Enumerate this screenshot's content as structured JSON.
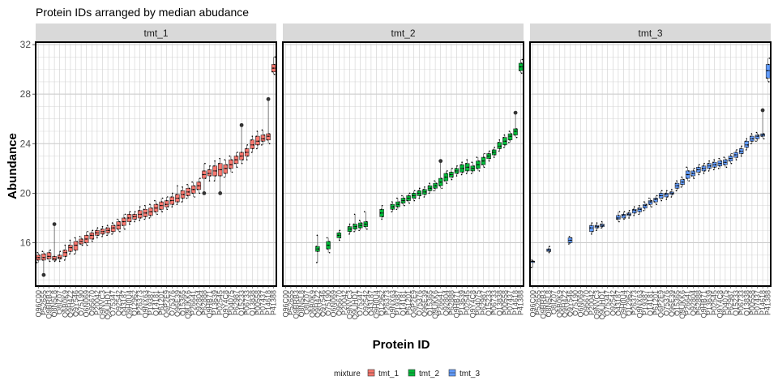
{
  "chart_data": {
    "type": "boxplot",
    "title": "Protein IDs arranged by median abudance",
    "xlabel": "Protein ID",
    "ylabel": "Abundance",
    "ylim": [
      12.5,
      32.2
    ],
    "yticks": [
      16,
      20,
      24,
      28,
      32
    ],
    "grid": true,
    "legend": {
      "title": "mixture",
      "position": "bottom",
      "entries": [
        "tmt_1",
        "tmt_2",
        "tmt_3"
      ]
    },
    "colors": {
      "tmt_1": "#F8766D",
      "tmt_2": "#00BA38",
      "tmt_3": "#619CFF"
    },
    "categories": [
      "Q96C00",
      "P52655",
      "Q9BRB3",
      "Q8N5L8",
      "Q8IZ07",
      "Q6B0K9",
      "Q9H4Z2",
      "Q9Y546",
      "O75190",
      "Q6N069",
      "O95670",
      "P20042",
      "Q9NVC3",
      "Q9UHD1",
      "O75347",
      "Q92542",
      "O43187",
      "Q9H0U4",
      "Q12962",
      "P26373",
      "Q9NX63",
      "P19387",
      "Q14181",
      "P61201",
      "Q6P2E9",
      "O75376",
      "Q96E39",
      "Q15365",
      "Q9UKK6",
      "P26641",
      "Q92804",
      "P62888",
      "Q9HB71",
      "P13639",
      "P02545",
      "Q9Y4C8",
      "P04075",
      "P62987",
      "Q15233",
      "P06733",
      "Q13838",
      "P00558",
      "P07437",
      "P14618",
      "P41388"
    ],
    "series": [
      {
        "name": "tmt_1",
        "medians": [
          14.8,
          14.8,
          14.9,
          14.7,
          14.8,
          15.2,
          15.6,
          15.8,
          16.1,
          16.3,
          16.6,
          16.8,
          16.9,
          17.0,
          17.2,
          17.4,
          17.7,
          18.0,
          18.1,
          18.3,
          18.4,
          18.5,
          18.8,
          19.0,
          19.1,
          19.4,
          19.6,
          19.9,
          20.1,
          20.3,
          20.6,
          21.5,
          21.6,
          21.8,
          21.9,
          22.0,
          22.3,
          22.7,
          23.0,
          23.3,
          23.9,
          24.2,
          24.4,
          24.6,
          30.1
        ],
        "q1": [
          14.6,
          14.6,
          14.7,
          14.6,
          14.7,
          14.9,
          15.3,
          15.4,
          15.9,
          16.0,
          16.3,
          16.6,
          16.7,
          16.8,
          16.9,
          17.1,
          17.4,
          17.7,
          17.9,
          18.0,
          18.1,
          18.2,
          18.5,
          18.7,
          18.9,
          19.1,
          19.3,
          19.6,
          19.8,
          20.0,
          20.3,
          21.2,
          21.4,
          21.4,
          21.4,
          21.6,
          22.0,
          22.4,
          22.7,
          23.0,
          23.6,
          23.9,
          24.2,
          24.3,
          29.8
        ],
        "q3": [
          15.0,
          15.1,
          15.2,
          14.9,
          15.0,
          15.4,
          15.8,
          16.1,
          16.3,
          16.6,
          16.8,
          17.0,
          17.1,
          17.2,
          17.4,
          17.7,
          18.0,
          18.3,
          18.3,
          18.6,
          18.7,
          18.8,
          19.1,
          19.3,
          19.4,
          19.7,
          19.9,
          20.2,
          20.4,
          20.6,
          20.9,
          21.8,
          21.9,
          22.2,
          22.4,
          22.3,
          22.7,
          23.0,
          23.3,
          23.6,
          24.3,
          24.6,
          24.7,
          24.8,
          30.4
        ],
        "min": [
          14.4,
          13.4,
          14.5,
          14.5,
          14.5,
          14.6,
          15.1,
          15.1,
          15.8,
          15.8,
          16.1,
          16.4,
          16.5,
          16.6,
          16.7,
          16.9,
          17.1,
          17.5,
          17.7,
          17.8,
          17.9,
          18.0,
          18.3,
          18.5,
          18.7,
          18.9,
          19.1,
          19.3,
          19.6,
          19.7,
          20.0,
          20.0,
          21.0,
          21.0,
          20.0,
          21.3,
          21.7,
          22.1,
          22.4,
          22.7,
          23.3,
          23.6,
          23.9,
          24.0,
          29.6
        ],
        "max": [
          15.2,
          15.3,
          15.4,
          17.5,
          15.3,
          15.8,
          16.2,
          16.4,
          16.5,
          16.9,
          17.0,
          17.2,
          17.3,
          17.4,
          17.6,
          17.9,
          18.3,
          18.5,
          18.5,
          18.9,
          19.0,
          19.1,
          19.4,
          19.6,
          19.7,
          20.0,
          20.6,
          20.5,
          20.7,
          20.9,
          21.2,
          22.4,
          22.2,
          22.6,
          22.8,
          22.7,
          23.0,
          23.3,
          25.5,
          23.9,
          24.6,
          25.0,
          25.1,
          27.6,
          31.0
        ]
      },
      {
        "name": "tmt_2",
        "medians": [
          null,
          null,
          null,
          null,
          null,
          null,
          15.5,
          null,
          15.8,
          null,
          16.6,
          null,
          17.1,
          17.3,
          17.4,
          17.5,
          null,
          null,
          18.4,
          null,
          18.9,
          19.1,
          19.4,
          19.6,
          19.8,
          20.0,
          20.1,
          20.4,
          20.6,
          20.9,
          21.3,
          21.5,
          21.8,
          22.0,
          22.1,
          22.0,
          22.3,
          22.6,
          23.0,
          23.3,
          23.8,
          24.2,
          24.6,
          25.0,
          30.2
        ],
        "q1": [
          null,
          null,
          null,
          null,
          null,
          null,
          15.3,
          null,
          15.5,
          null,
          16.4,
          null,
          16.9,
          17.1,
          17.2,
          17.3,
          null,
          null,
          18.1,
          null,
          18.7,
          18.9,
          19.2,
          19.4,
          19.6,
          19.8,
          19.9,
          20.2,
          20.4,
          20.6,
          21.0,
          21.3,
          21.6,
          21.7,
          21.8,
          21.8,
          22.0,
          22.3,
          22.8,
          23.1,
          23.6,
          23.9,
          24.3,
          24.7,
          29.9
        ],
        "q3": [
          null,
          null,
          null,
          null,
          null,
          null,
          15.7,
          null,
          16.1,
          null,
          16.8,
          null,
          17.3,
          17.5,
          17.6,
          17.7,
          null,
          null,
          18.7,
          null,
          19.1,
          19.3,
          19.6,
          19.8,
          20.0,
          20.2,
          20.3,
          20.6,
          20.8,
          21.2,
          21.6,
          21.7,
          22.0,
          22.3,
          22.4,
          22.2,
          22.6,
          22.9,
          23.2,
          23.5,
          24.1,
          24.5,
          24.8,
          25.2,
          30.5
        ],
        "min": [
          null,
          null,
          null,
          null,
          null,
          null,
          14.4,
          null,
          15.2,
          null,
          16.2,
          null,
          16.7,
          16.9,
          17.0,
          17.1,
          null,
          null,
          17.9,
          null,
          18.5,
          18.7,
          19.0,
          19.2,
          19.4,
          19.6,
          19.7,
          20.0,
          20.2,
          20.4,
          20.8,
          21.1,
          21.4,
          21.5,
          21.6,
          21.6,
          21.8,
          22.1,
          22.6,
          22.9,
          23.4,
          23.7,
          24.1,
          24.5,
          29.7
        ],
        "max": [
          null,
          null,
          null,
          null,
          null,
          null,
          16.6,
          null,
          16.4,
          null,
          17.0,
          null,
          17.5,
          18.3,
          17.8,
          18.5,
          null,
          null,
          19.0,
          null,
          19.3,
          19.6,
          19.8,
          20.0,
          20.2,
          20.4,
          20.5,
          20.8,
          21.0,
          22.6,
          21.8,
          22.0,
          22.2,
          22.5,
          22.7,
          22.5,
          22.9,
          23.2,
          23.4,
          23.7,
          24.3,
          24.7,
          25.0,
          26.5,
          30.8
        ]
      },
      {
        "name": "tmt_3",
        "medians": [
          14.5,
          null,
          null,
          15.4,
          null,
          null,
          null,
          16.2,
          null,
          null,
          null,
          17.2,
          17.3,
          17.4,
          null,
          null,
          18.0,
          18.2,
          18.3,
          18.6,
          18.7,
          19.0,
          19.3,
          19.5,
          19.8,
          19.9,
          20.0,
          20.6,
          20.9,
          21.5,
          21.6,
          21.9,
          22.0,
          22.2,
          22.3,
          22.4,
          22.5,
          22.8,
          23.1,
          23.4,
          23.9,
          24.4,
          24.6,
          24.7,
          29.9
        ],
        "q1": [
          14.5,
          null,
          null,
          15.3,
          null,
          null,
          null,
          16.0,
          null,
          null,
          null,
          16.9,
          17.2,
          17.3,
          null,
          null,
          17.9,
          18.0,
          18.2,
          18.4,
          18.5,
          18.8,
          19.1,
          19.3,
          19.6,
          19.7,
          19.9,
          20.4,
          20.7,
          21.2,
          21.4,
          21.7,
          21.8,
          22.0,
          22.1,
          22.2,
          22.3,
          22.6,
          22.9,
          23.2,
          23.7,
          24.2,
          24.4,
          24.6,
          29.3
        ],
        "q3": [
          14.5,
          null,
          null,
          15.5,
          null,
          null,
          null,
          16.4,
          null,
          null,
          null,
          17.4,
          17.4,
          17.5,
          null,
          null,
          18.2,
          18.3,
          18.4,
          18.7,
          18.8,
          19.1,
          19.4,
          19.6,
          20.0,
          20.0,
          20.1,
          20.8,
          21.1,
          21.8,
          21.8,
          22.1,
          22.2,
          22.4,
          22.5,
          22.6,
          22.7,
          23.0,
          23.3,
          23.6,
          24.2,
          24.6,
          24.7,
          24.8,
          30.4
        ],
        "min": [
          14.0,
          null,
          null,
          15.2,
          null,
          null,
          null,
          15.9,
          null,
          null,
          null,
          16.7,
          17.0,
          17.2,
          null,
          null,
          17.7,
          17.9,
          18.0,
          18.2,
          18.3,
          18.6,
          18.9,
          19.1,
          19.4,
          19.5,
          19.7,
          20.2,
          20.5,
          21.0,
          21.2,
          21.5,
          21.6,
          21.8,
          21.9,
          22.0,
          22.1,
          22.4,
          22.7,
          23.0,
          23.5,
          24.0,
          24.2,
          24.4,
          29.0
        ],
        "max": [
          14.6,
          null,
          null,
          15.7,
          null,
          null,
          null,
          16.5,
          null,
          null,
          null,
          17.6,
          17.6,
          17.7,
          null,
          null,
          18.5,
          18.5,
          18.6,
          18.9,
          19.0,
          19.3,
          19.6,
          19.8,
          20.2,
          20.2,
          20.3,
          21.0,
          21.3,
          22.1,
          22.0,
          22.3,
          22.4,
          22.6,
          22.7,
          22.8,
          22.9,
          23.2,
          23.5,
          23.8,
          24.4,
          24.8,
          24.9,
          26.7,
          30.9
        ]
      }
    ]
  }
}
